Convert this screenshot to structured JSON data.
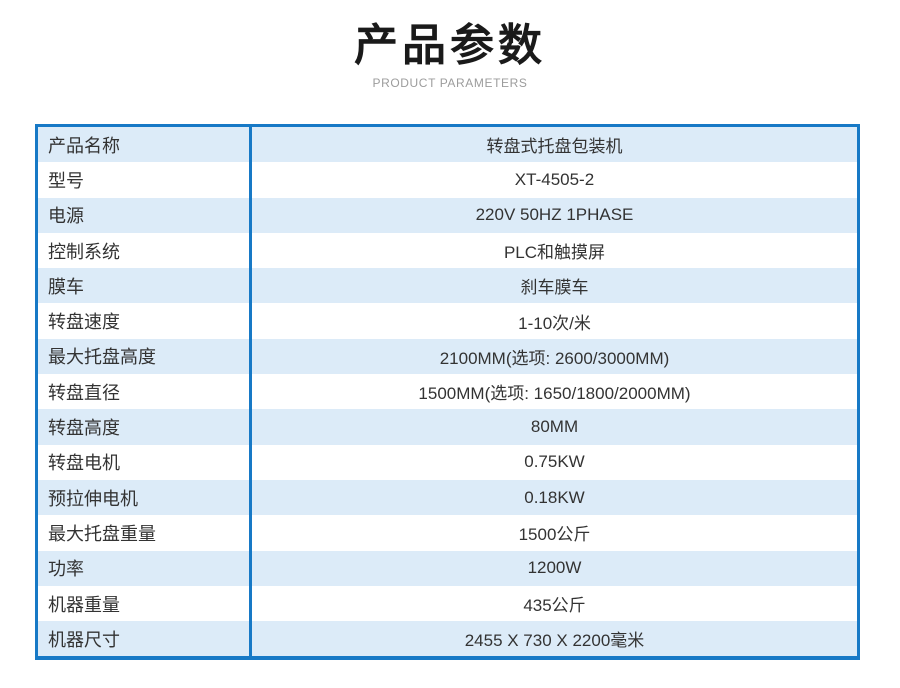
{
  "header": {
    "title": "产品参数",
    "subtitle": "PRODUCT PARAMETERS"
  },
  "colors": {
    "border_blue": "#1779c6",
    "row_alt_blue": "#dcebf8",
    "text_dark": "#333333",
    "subtitle_gray": "#9c9c9c",
    "title_black": "#1a1a1a"
  },
  "table": {
    "rows": [
      {
        "label": "产品名称",
        "value": "转盘式托盘包装机"
      },
      {
        "label": "型号",
        "value": "XT-4505-2"
      },
      {
        "label": "电源",
        "value": "220V 50HZ 1PHASE"
      },
      {
        "label": "控制系统",
        "value": "PLC和触摸屏"
      },
      {
        "label": "膜车",
        "value": "刹车膜车"
      },
      {
        "label": "转盘速度",
        "value": "1-10次/米"
      },
      {
        "label": "最大托盘高度",
        "value": "2100MM(选项: 2600/3000MM)"
      },
      {
        "label": "转盘直径",
        "value": "1500MM(选项: 1650/1800/2000MM)"
      },
      {
        "label": "转盘高度",
        "value": "80MM"
      },
      {
        "label": "转盘电机",
        "value": "0.75KW"
      },
      {
        "label": "预拉伸电机",
        "value": "0.18KW"
      },
      {
        "label": "最大托盘重量",
        "value": "1500公斤"
      },
      {
        "label": "功率",
        "value": "1200W"
      },
      {
        "label": "机器重量",
        "value": "435公斤"
      },
      {
        "label": "机器尺寸",
        "value": "2455 X 730 X 2200毫米"
      }
    ]
  }
}
